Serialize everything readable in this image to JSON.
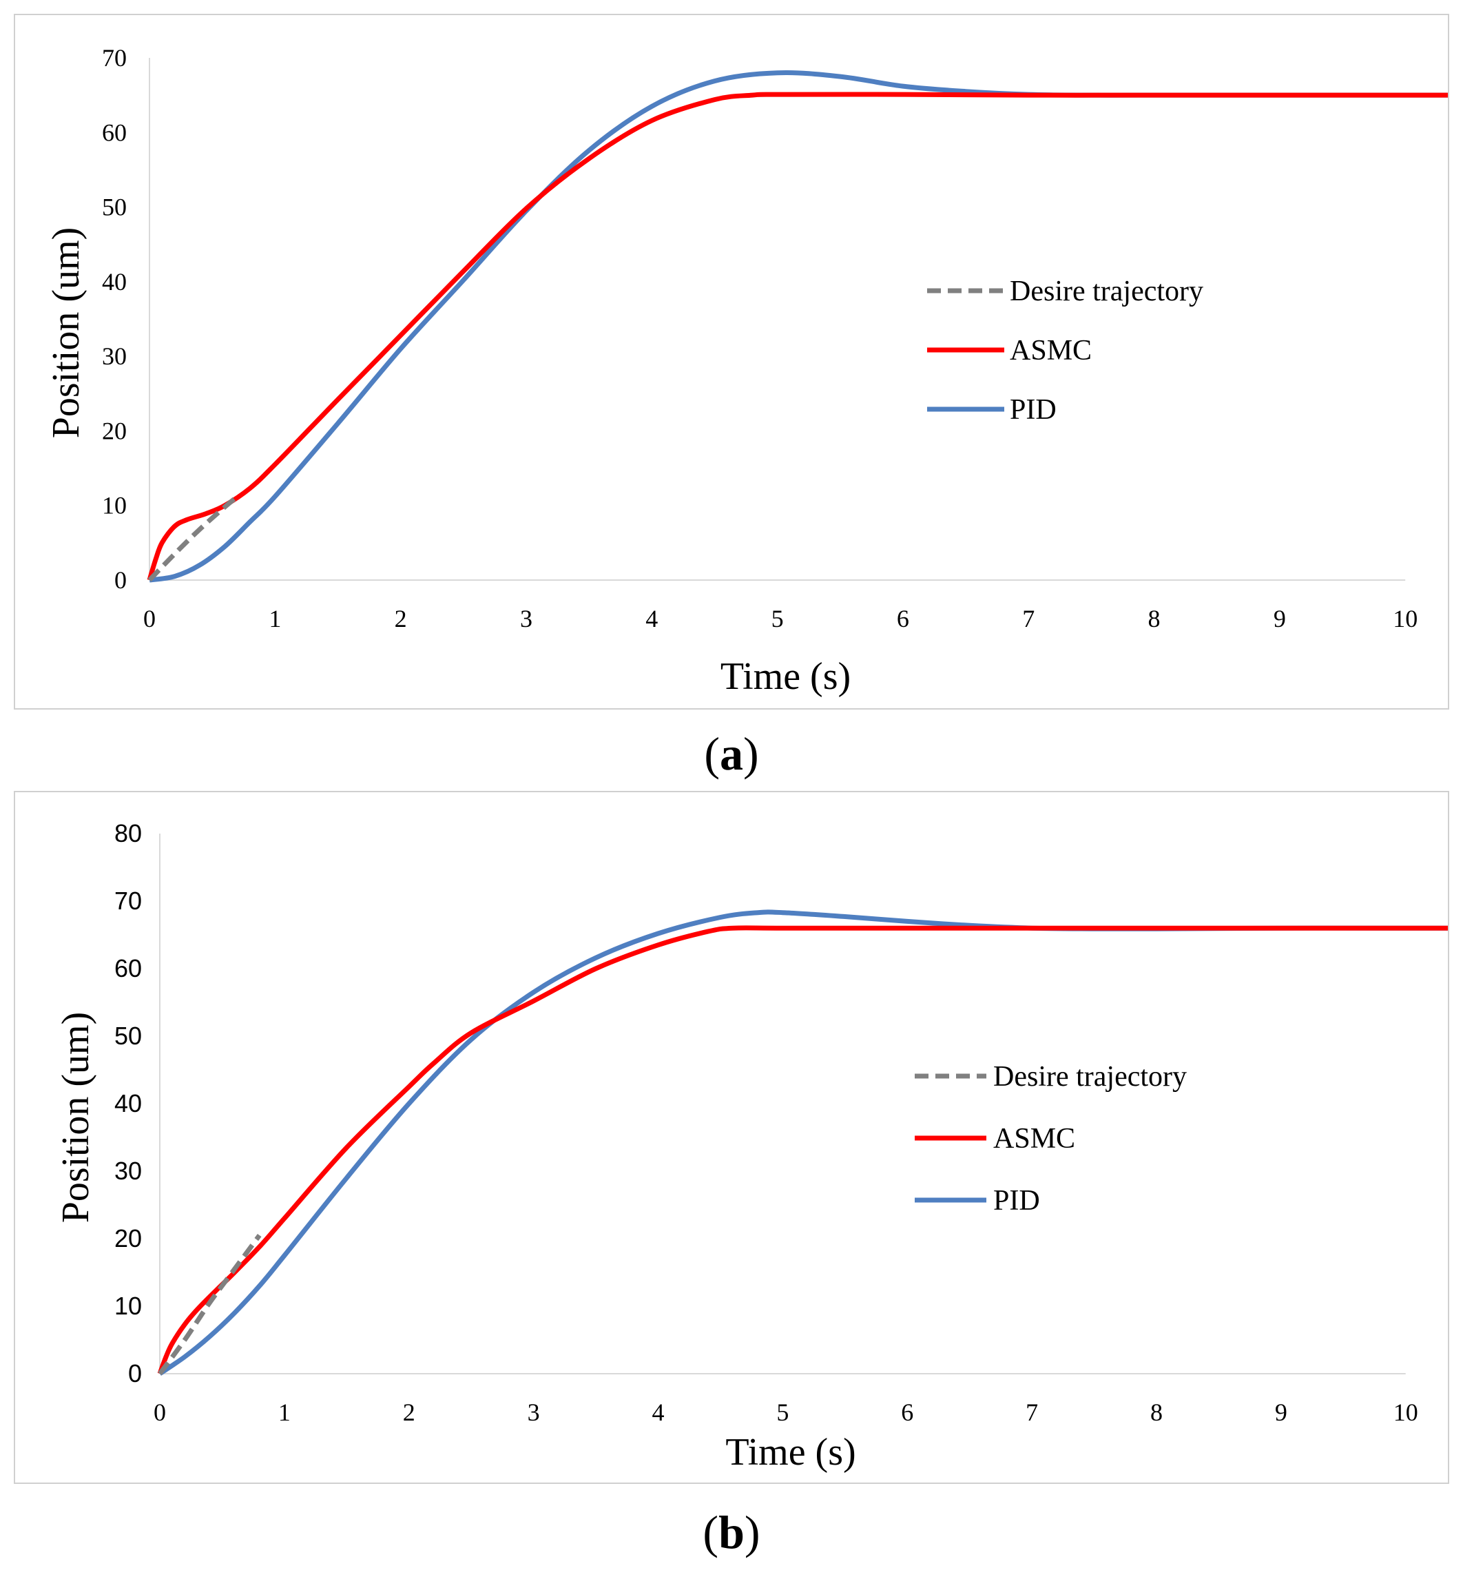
{
  "chart_data": [
    {
      "id": "a",
      "type": "line",
      "caption_letter": "a",
      "xlabel": "Time (s)",
      "ylabel": "Position (um)",
      "xlim": [
        0,
        10.35
      ],
      "ylim": [
        0,
        70
      ],
      "xticks": [
        0,
        1,
        2,
        3,
        4,
        5,
        6,
        7,
        8,
        9,
        10
      ],
      "yticks": [
        0,
        10,
        20,
        30,
        40,
        50,
        60,
        70
      ],
      "legend": [
        "Desire trajectory",
        "ASMC",
        "PID"
      ],
      "legend_position": "center-right",
      "series": [
        {
          "name": "Desire trajectory",
          "color": "#808080",
          "style": "dashed",
          "x": [
            0,
            0.2,
            0.4,
            0.6,
            0.7
          ],
          "y": [
            0,
            3.5,
            6.8,
            9.8,
            11.2
          ]
        },
        {
          "name": "ASMC",
          "color": "#ff0000",
          "style": "solid",
          "x": [
            0,
            0.05,
            0.1,
            0.2,
            0.3,
            0.45,
            0.6,
            0.8,
            1.0,
            1.5,
            2.0,
            2.5,
            3.0,
            3.5,
            4.0,
            4.5,
            4.8,
            5.0,
            6.0,
            7.0,
            8.0,
            9.0,
            10.0,
            10.35
          ],
          "y": [
            0,
            2.8,
            5.0,
            7.2,
            8.1,
            8.9,
            10.0,
            12.3,
            15.5,
            24.2,
            32.8,
            41.4,
            49.8,
            56.5,
            61.6,
            64.4,
            65.0,
            65.1,
            65.1,
            65.0,
            65.0,
            65.0,
            65.0,
            65.0
          ]
        },
        {
          "name": "PID",
          "color": "#4f7fc1",
          "style": "solid",
          "x": [
            0,
            0.2,
            0.4,
            0.6,
            0.8,
            1.0,
            1.5,
            2.0,
            2.5,
            3.0,
            3.5,
            4.0,
            4.5,
            5.0,
            5.5,
            6.0,
            6.5,
            7.0,
            7.5,
            8.0,
            9.0,
            10.0,
            10.35
          ],
          "y": [
            0,
            0.5,
            2.0,
            4.5,
            7.8,
            11.2,
            21.0,
            31.0,
            40.2,
            49.5,
            57.6,
            63.5,
            66.9,
            68.0,
            67.5,
            66.2,
            65.5,
            65.1,
            65.0,
            65.0,
            65.0,
            65.0,
            65.0
          ]
        }
      ]
    },
    {
      "id": "b",
      "type": "line",
      "caption_letter": "b",
      "xlabel": "Time (s)",
      "ylabel": "Position (um)",
      "xlim": [
        0,
        10.35
      ],
      "ylim": [
        0,
        80
      ],
      "xticks": [
        0,
        1,
        2,
        3,
        4,
        5,
        6,
        7,
        8,
        9,
        10
      ],
      "yticks": [
        0,
        10,
        20,
        30,
        40,
        50,
        60,
        70,
        80
      ],
      "legend": [
        "Desire trajectory",
        "ASMC",
        "PID"
      ],
      "legend_position": "center-right",
      "series": [
        {
          "name": "Desire trajectory",
          "color": "#808080",
          "style": "dashed",
          "x": [
            0,
            0.2,
            0.4,
            0.6,
            0.8
          ],
          "y": [
            0,
            5.0,
            10.5,
            15.5,
            20.5
          ]
        },
        {
          "name": "ASMC",
          "color": "#ff0000",
          "style": "solid",
          "x": [
            0,
            0.05,
            0.1,
            0.2,
            0.3,
            0.45,
            0.6,
            0.8,
            1.0,
            1.5,
            2.0,
            2.2,
            2.5,
            3.0,
            3.5,
            4.0,
            4.4,
            4.6,
            5.0,
            6.0,
            7.0,
            8.0,
            9.0,
            10.0,
            10.35
          ],
          "y": [
            0,
            2.5,
            4.5,
            7.3,
            9.5,
            12.3,
            15.0,
            18.8,
            23.0,
            33.5,
            42.5,
            46.0,
            50.5,
            55.2,
            60.0,
            63.5,
            65.5,
            66.0,
            66.0,
            66.0,
            66.0,
            66.0,
            66.0,
            66.0,
            66.0
          ]
        },
        {
          "name": "PID",
          "color": "#4f7fc1",
          "style": "solid",
          "x": [
            0,
            0.2,
            0.4,
            0.6,
            0.8,
            1.0,
            1.5,
            2.0,
            2.5,
            3.0,
            3.5,
            4.0,
            4.5,
            4.8,
            5.0,
            5.5,
            6.0,
            6.5,
            7.0,
            7.5,
            8.0,
            9.0,
            10.0,
            10.35
          ],
          "y": [
            0,
            2.5,
            5.5,
            9.0,
            13.0,
            17.5,
            29.0,
            40.0,
            49.5,
            56.5,
            61.6,
            65.2,
            67.6,
            68.3,
            68.3,
            67.7,
            67.0,
            66.4,
            66.0,
            65.9,
            65.9,
            66.0,
            66.0,
            66.0
          ]
        }
      ]
    }
  ]
}
